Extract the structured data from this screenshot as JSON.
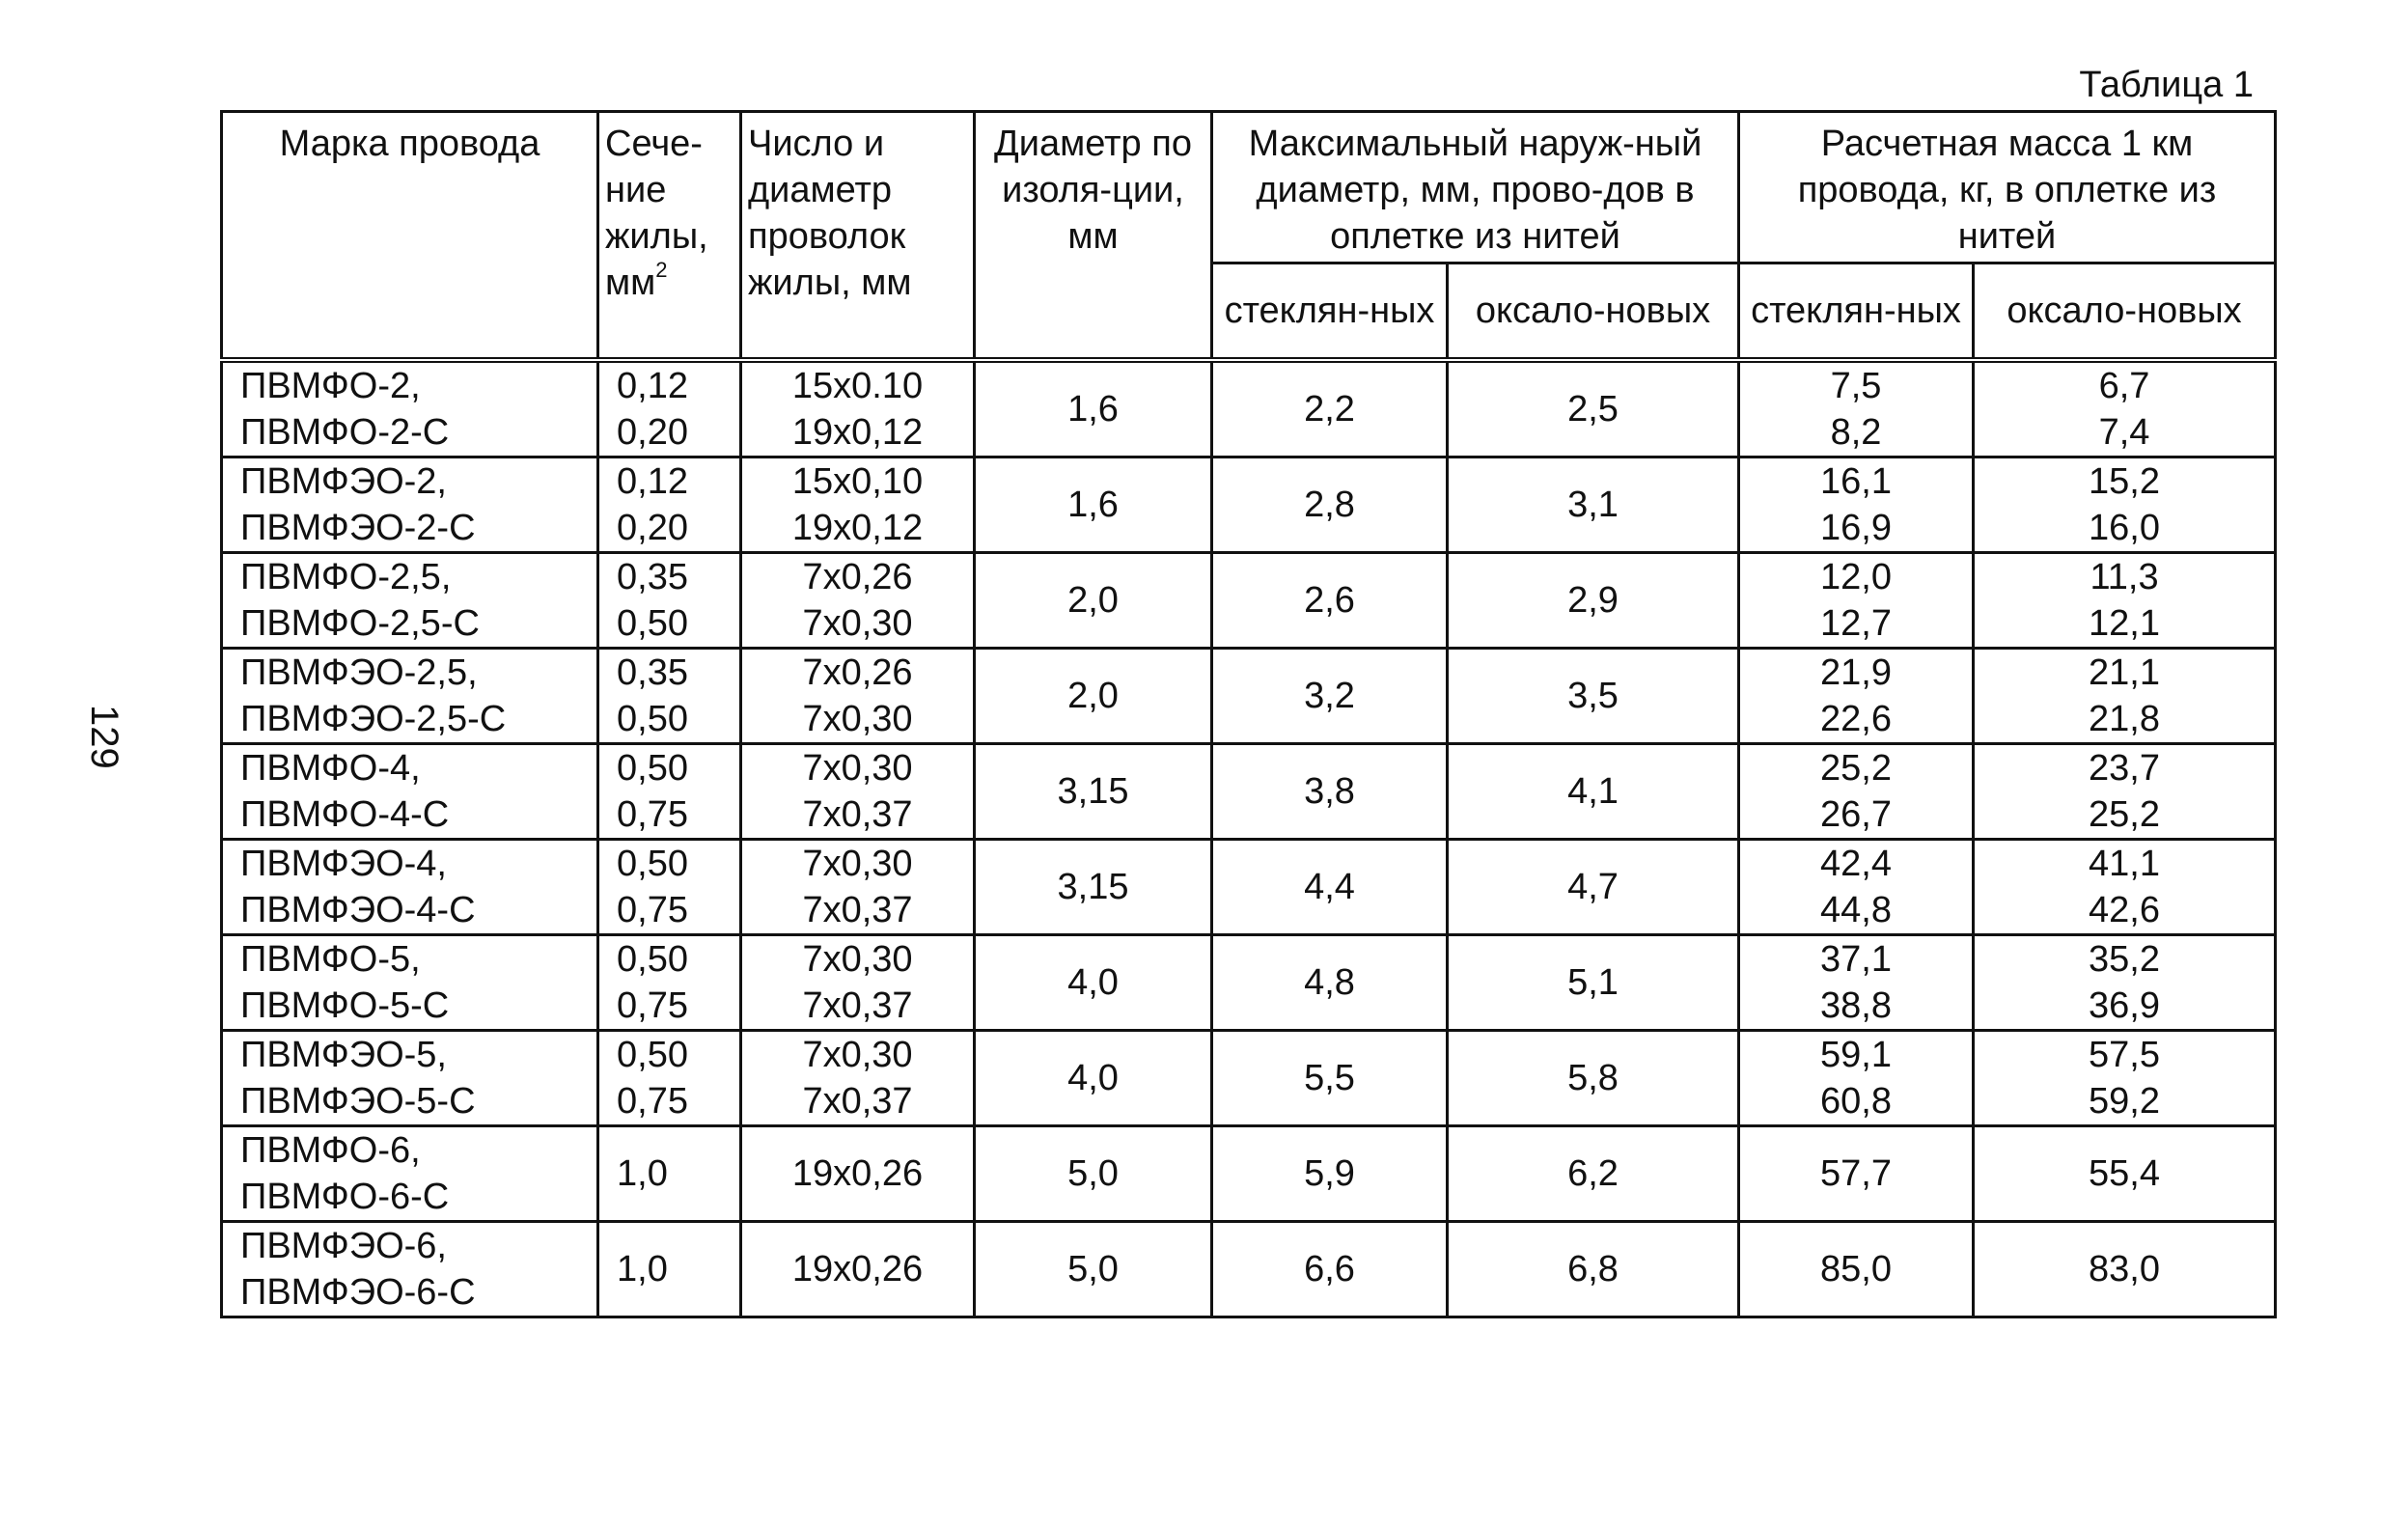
{
  "caption": "Таблица 1",
  "page_number": "129",
  "headers": {
    "mark": "Марка провода",
    "section": "Сече-ние жилы, мм",
    "section_sup": "2",
    "wires": "Число и диаметр проволок жилы, мм",
    "insulation": "Диаметр по изоля-ции, мм",
    "max_diam": "Максимальный наруж-ный диаметр, мм, прово-дов в оплетке из нитей",
    "mass": "Расчетная масса 1 км провода, кг, в оплетке из нитей",
    "glass": "стеклян-ных",
    "oxalon": "оксало-новых"
  },
  "rows": [
    {
      "mark": [
        "ПВМФО-2,",
        "ПВМФО-2-С"
      ],
      "section": [
        "0,12",
        "0,20"
      ],
      "wires": [
        "15х0.10",
        "19х0,12"
      ],
      "insulation": "1,6",
      "diam_glass": "2,2",
      "diam_oxalon": "2,5",
      "mass_glass": [
        "7,5",
        "8,2"
      ],
      "mass_oxalon": [
        "6,7",
        "7,4"
      ]
    },
    {
      "mark": [
        "ПВМФЭО-2,",
        "ПВМФЭО-2-С"
      ],
      "section": [
        "0,12",
        "0,20"
      ],
      "wires": [
        "15х0,10",
        "19х0,12"
      ],
      "insulation": "1,6",
      "diam_glass": "2,8",
      "diam_oxalon": "3,1",
      "mass_glass": [
        "16,1",
        "16,9"
      ],
      "mass_oxalon": [
        "15,2",
        "16,0"
      ]
    },
    {
      "mark": [
        "ПВМФО-2,5,",
        "ПВМФО-2,5-С"
      ],
      "section": [
        "0,35",
        "0,50"
      ],
      "wires": [
        "7х0,26",
        "7х0,30"
      ],
      "insulation": "2,0",
      "diam_glass": "2,6",
      "diam_oxalon": "2,9",
      "mass_glass": [
        "12,0",
        "12,7"
      ],
      "mass_oxalon": [
        "11,3",
        "12,1"
      ]
    },
    {
      "mark": [
        "ПВМФЭО-2,5,",
        "ПВМФЭО-2,5-С"
      ],
      "section": [
        "0,35",
        "0,50"
      ],
      "wires": [
        "7х0,26",
        "7х0,30"
      ],
      "insulation": "2,0",
      "diam_glass": "3,2",
      "diam_oxalon": "3,5",
      "mass_glass": [
        "21,9",
        "22,6"
      ],
      "mass_oxalon": [
        "21,1",
        "21,8"
      ]
    },
    {
      "mark": [
        "ПВМФО-4,",
        "ПВМФО-4-С"
      ],
      "section": [
        "0,50",
        "0,75"
      ],
      "wires": [
        "7х0,30",
        "7х0,37"
      ],
      "insulation": "3,15",
      "diam_glass": "3,8",
      "diam_oxalon": "4,1",
      "mass_glass": [
        "25,2",
        "26,7"
      ],
      "mass_oxalon": [
        "23,7",
        "25,2"
      ]
    },
    {
      "mark": [
        "ПВМФЭО-4,",
        "ПВМФЭО-4-С"
      ],
      "section": [
        "0,50",
        "0,75"
      ],
      "wires": [
        "7х0,30",
        "7х0,37"
      ],
      "insulation": "3,15",
      "diam_glass": "4,4",
      "diam_oxalon": "4,7",
      "mass_glass": [
        "42,4",
        "44,8"
      ],
      "mass_oxalon": [
        "41,1",
        "42,6"
      ]
    },
    {
      "mark": [
        "ПВМФО-5,",
        "ПВМФО-5-С"
      ],
      "section": [
        "0,50",
        "0,75"
      ],
      "wires": [
        "7х0,30",
        "7х0,37"
      ],
      "insulation": "4,0",
      "diam_glass": "4,8",
      "diam_oxalon": "5,1",
      "mass_glass": [
        "37,1",
        "38,8"
      ],
      "mass_oxalon": [
        "35,2",
        "36,9"
      ]
    },
    {
      "mark": [
        "ПВМФЭО-5,",
        "ПВМФЭО-5-С"
      ],
      "section": [
        "0,50",
        "0,75"
      ],
      "wires": [
        "7х0,30",
        "7х0,37"
      ],
      "insulation": "4,0",
      "diam_glass": "5,5",
      "diam_oxalon": "5,8",
      "mass_glass": [
        "59,1",
        "60,8"
      ],
      "mass_oxalon": [
        "57,5",
        "59,2"
      ]
    },
    {
      "mark": [
        "ПВМФО-6,",
        "ПВМФО-6-С"
      ],
      "section": [
        "1,0"
      ],
      "wires": [
        "19х0,26"
      ],
      "insulation": "5,0",
      "diam_glass": "5,9",
      "diam_oxalon": "6,2",
      "mass_glass": [
        "57,7"
      ],
      "mass_oxalon": [
        "55,4"
      ]
    },
    {
      "mark": [
        "ПВМФЭО-6,",
        "ПВМФЭО-6-С"
      ],
      "section": [
        "1,0"
      ],
      "wires": [
        "19х0,26"
      ],
      "insulation": "5,0",
      "diam_glass": "6,6",
      "diam_oxalon": "6,8",
      "mass_glass": [
        "85,0"
      ],
      "mass_oxalon": [
        "83,0"
      ]
    }
  ]
}
